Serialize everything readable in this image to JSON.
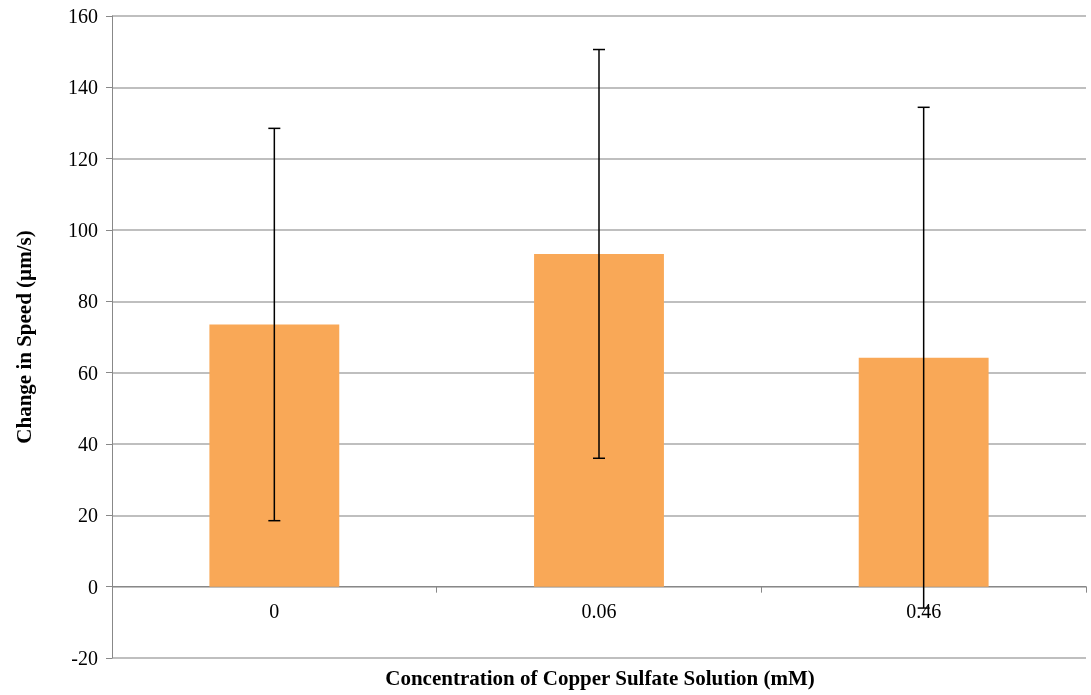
{
  "chart_data": {
    "type": "bar",
    "xlabel": "Concentration of Copper Sulfate Solution (mM)",
    "ylabel": "Change in Speed (µm/s)",
    "categories": [
      "0",
      "0.06",
      "0.46"
    ],
    "values": [
      73.5,
      93.3,
      64.2
    ],
    "errors": [
      55,
      57.3,
      70.2
    ],
    "color": "#f9a857",
    "ylim": [
      -20,
      160
    ],
    "yticks": [
      -20,
      0,
      20,
      40,
      60,
      80,
      100,
      120,
      140,
      160
    ],
    "grid": "y"
  }
}
